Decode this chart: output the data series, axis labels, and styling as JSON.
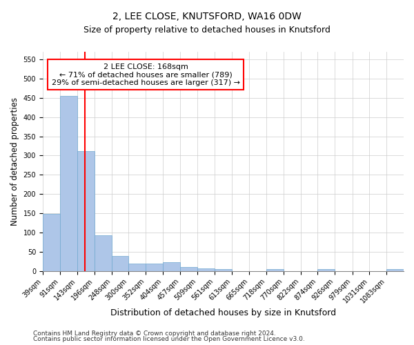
{
  "title": "2, LEE CLOSE, KNUTSFORD, WA16 0DW",
  "subtitle": "Size of property relative to detached houses in Knutsford",
  "xlabel": "Distribution of detached houses by size in Knutsford",
  "ylabel": "Number of detached properties",
  "footnote1": "Contains HM Land Registry data © Crown copyright and database right 2024.",
  "footnote2": "Contains public sector information licensed under the Open Government Licence v3.0.",
  "bin_labels": [
    "39sqm",
    "91sqm",
    "143sqm",
    "196sqm",
    "248sqm",
    "300sqm",
    "352sqm",
    "404sqm",
    "457sqm",
    "509sqm",
    "561sqm",
    "613sqm",
    "665sqm",
    "718sqm",
    "770sqm",
    "822sqm",
    "874sqm",
    "926sqm",
    "979sqm",
    "1031sqm",
    "1083sqm"
  ],
  "bin_edges": [
    39,
    91,
    143,
    196,
    248,
    300,
    352,
    404,
    457,
    509,
    561,
    613,
    665,
    718,
    770,
    822,
    874,
    926,
    979,
    1031,
    1083,
    1135
  ],
  "bar_heights": [
    148,
    456,
    312,
    92,
    38,
    19,
    20,
    22,
    10,
    6,
    5,
    0,
    0,
    4,
    0,
    0,
    4,
    0,
    0,
    0,
    4
  ],
  "bar_color": "#aec6e8",
  "bar_edge_color": "#6fa8d0",
  "red_line_value": 168,
  "annotation_line1": "2 LEE CLOSE: 168sqm",
  "annotation_line2": "← 71% of detached houses are smaller (789)",
  "annotation_line3": "29% of semi-detached houses are larger (317) →",
  "annotation_box_color": "white",
  "annotation_box_edgecolor": "red",
  "red_line_color": "red",
  "ylim": [
    0,
    570
  ],
  "yticks": [
    0,
    50,
    100,
    150,
    200,
    250,
    300,
    350,
    400,
    450,
    500,
    550
  ],
  "grid_color": "#cccccc",
  "background_color": "white",
  "title_fontsize": 10,
  "subtitle_fontsize": 9,
  "ylabel_fontsize": 8.5,
  "xlabel_fontsize": 9,
  "tick_fontsize": 7,
  "footnote_fontsize": 6.5,
  "annotation_fontsize": 8
}
